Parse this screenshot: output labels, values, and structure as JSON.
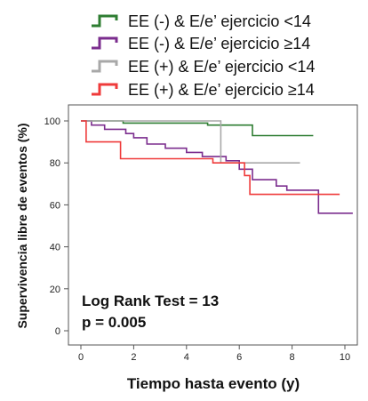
{
  "chart_data": {
    "type": "line",
    "step": true,
    "xlabel": "Tiempo hasta evento (y)",
    "ylabel": "Supervivencia libre de eventos (%)",
    "xlim": [
      0,
      10.5
    ],
    "ylim": [
      0,
      100
    ],
    "x_ticks": [
      0,
      2,
      4,
      6,
      8,
      10
    ],
    "y_ticks": [
      0,
      20,
      40,
      60,
      80,
      100
    ],
    "grid": false,
    "legend_position": "top",
    "annotations": [
      "Log Rank Test = 13",
      "p = 0.005"
    ],
    "series": [
      {
        "name": "EE (-) & E/e’ ejercicio <14",
        "color": "#2e7d32",
        "points": [
          [
            0,
            100
          ],
          [
            1.6,
            100
          ],
          [
            1.6,
            99
          ],
          [
            4.8,
            99
          ],
          [
            4.8,
            98
          ],
          [
            6.5,
            98
          ],
          [
            6.5,
            93
          ],
          [
            8.8,
            93
          ]
        ]
      },
      {
        "name": "EE (-) & E/e’ ejercicio  ≥14",
        "color": "#7b2d8e",
        "points": [
          [
            0,
            100
          ],
          [
            0.4,
            100
          ],
          [
            0.4,
            98
          ],
          [
            0.9,
            98
          ],
          [
            0.9,
            96
          ],
          [
            1.7,
            96
          ],
          [
            1.7,
            94
          ],
          [
            2.0,
            94
          ],
          [
            2.0,
            92
          ],
          [
            2.5,
            92
          ],
          [
            2.5,
            89
          ],
          [
            3.2,
            89
          ],
          [
            3.2,
            87
          ],
          [
            4.0,
            87
          ],
          [
            4.0,
            85
          ],
          [
            4.6,
            85
          ],
          [
            4.6,
            83
          ],
          [
            5.5,
            83
          ],
          [
            5.5,
            81
          ],
          [
            6.0,
            81
          ],
          [
            6.0,
            77
          ],
          [
            6.5,
            77
          ],
          [
            6.5,
            72
          ],
          [
            7.4,
            72
          ],
          [
            7.4,
            69
          ],
          [
            7.8,
            69
          ],
          [
            7.8,
            67
          ],
          [
            9.0,
            67
          ],
          [
            9.0,
            56
          ],
          [
            10.3,
            56
          ]
        ]
      },
      {
        "name": "EE (+) & E/e’ ejercicio <14",
        "color": "#a8a8a8",
        "points": [
          [
            0,
            100
          ],
          [
            5.3,
            100
          ],
          [
            5.3,
            80
          ],
          [
            8.3,
            80
          ]
        ]
      },
      {
        "name": "EE (+) & E/e’ ejercicio ≥14",
        "color": "#ef3b3b",
        "points": [
          [
            0,
            100
          ],
          [
            0.2,
            100
          ],
          [
            0.2,
            90
          ],
          [
            1.5,
            90
          ],
          [
            1.5,
            82
          ],
          [
            5.0,
            82
          ],
          [
            5.0,
            80
          ],
          [
            6.2,
            80
          ],
          [
            6.2,
            74
          ],
          [
            6.4,
            74
          ],
          [
            6.4,
            65
          ],
          [
            9.8,
            65
          ]
        ]
      }
    ]
  }
}
